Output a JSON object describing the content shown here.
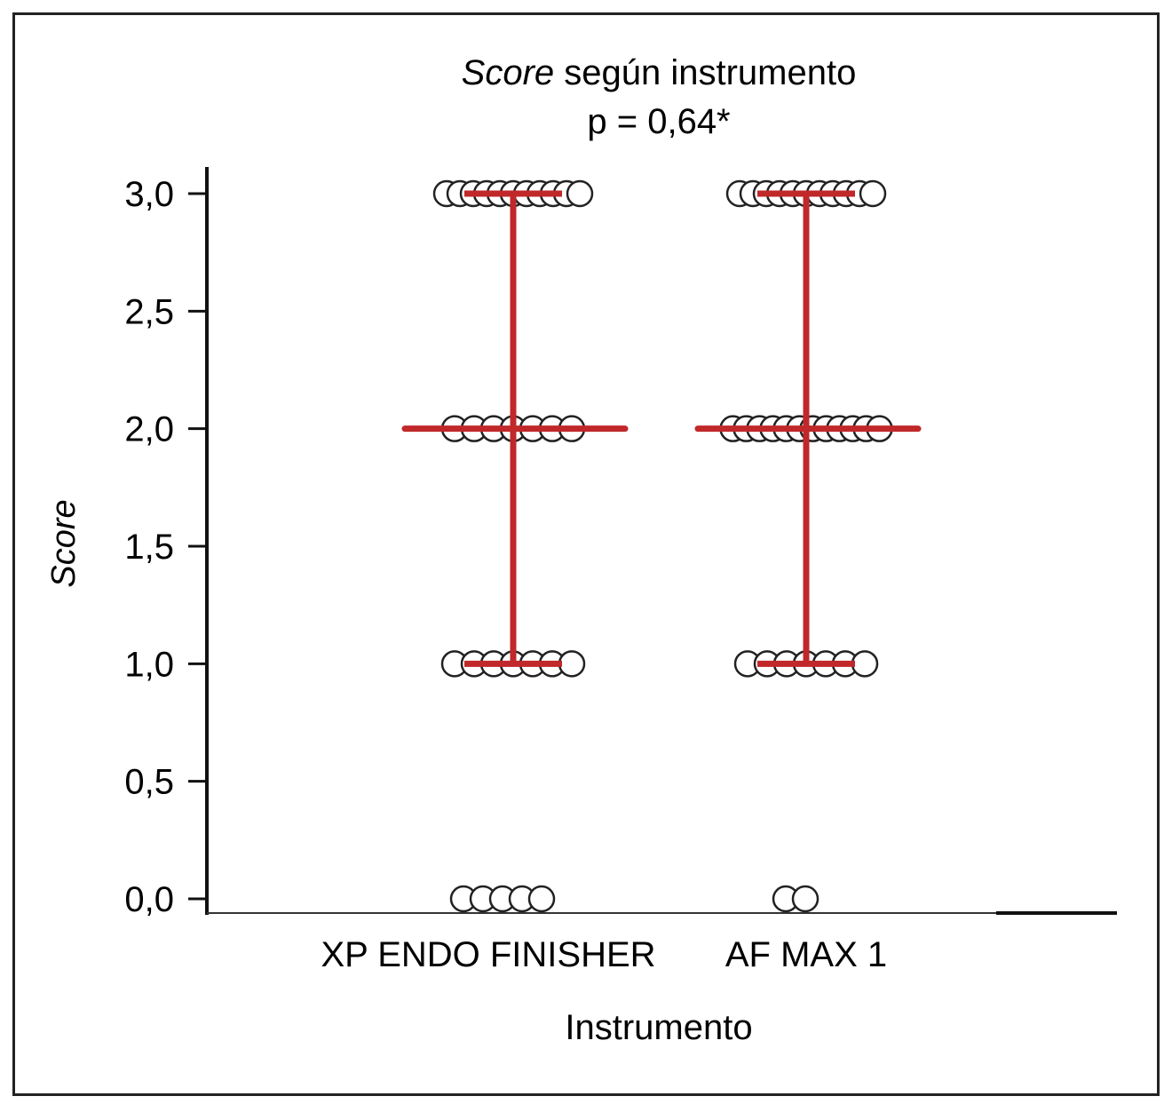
{
  "chart_data": {
    "type": "scatter",
    "title_italic": "Score",
    "title_rest": " según instrumento",
    "subtitle": "p = 0,64*",
    "xlabel": "Instrumento",
    "ylabel": "Score",
    "ylim": [
      0,
      3
    ],
    "yticks": [
      "0,0",
      "0,5",
      "1,0",
      "1,5",
      "2,0",
      "2,5",
      "3,0"
    ],
    "ytick_values": [
      0,
      0.5,
      1,
      1.5,
      2,
      2.5,
      3
    ],
    "categories": [
      "XP ENDO FINISHER",
      "AF MAX 1"
    ],
    "points": [
      {
        "category": "XP ENDO FINISHER",
        "counts": {
          "0": 5,
          "1": 7,
          "2": 7,
          "3": 11
        }
      },
      {
        "category": "AF MAX 1",
        "counts": {
          "0": 2,
          "1": 7,
          "2": 12,
          "3": 11
        }
      }
    ],
    "summary": [
      {
        "category": "XP ENDO FINISHER",
        "median": 2,
        "q1": 1,
        "q3": 3
      },
      {
        "category": "AF MAX 1",
        "median": 2,
        "q1": 1,
        "q3": 3
      }
    ],
    "summary_color": "#c0282a",
    "grid": false
  }
}
